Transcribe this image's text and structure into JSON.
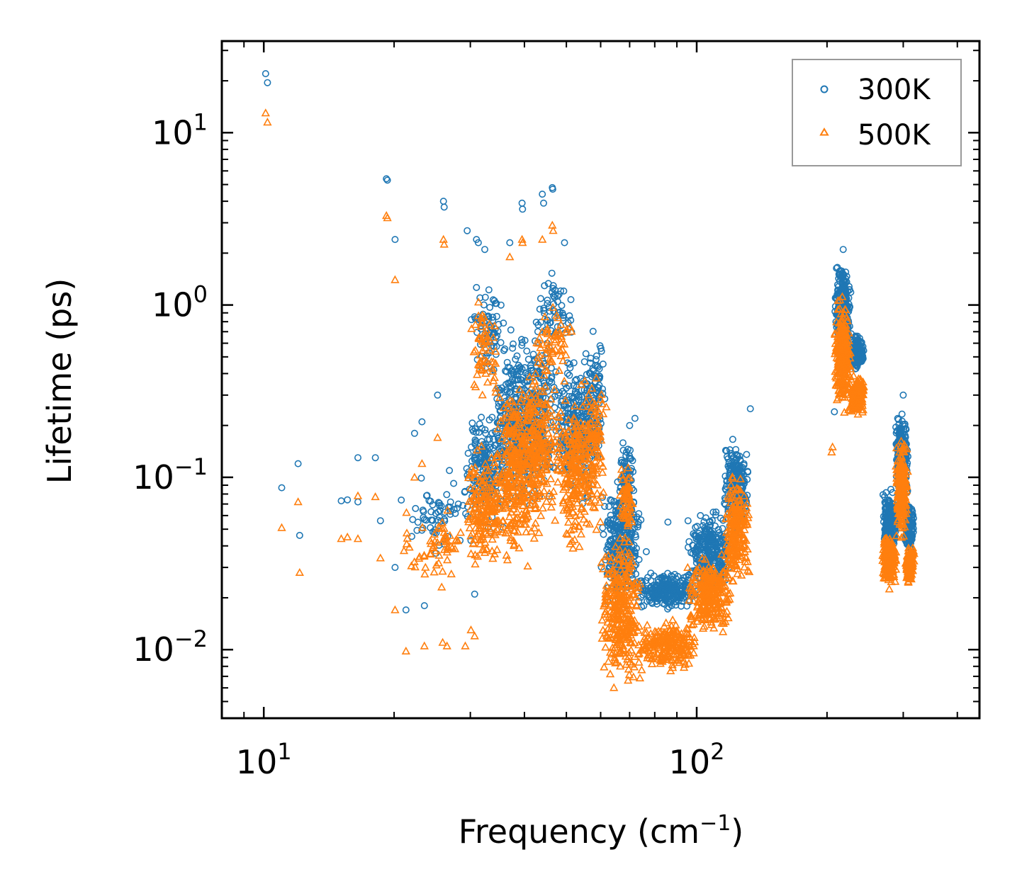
{
  "chart_data": {
    "type": "scatter",
    "x_scale": "log",
    "y_scale": "log",
    "xlim": [
      8,
      450
    ],
    "ylim": [
      0.004,
      34
    ],
    "xlabel": "Frequency (cm",
    "xlabel_sup": "−1",
    "xlabel_end": ")",
    "ylabel": "Lifetime (ps)",
    "x_major_ticks": [
      {
        "value": 10,
        "base": "10",
        "exp": "1"
      },
      {
        "value": 100,
        "base": "10",
        "exp": "2"
      }
    ],
    "y_major_ticks": [
      {
        "value": 10,
        "base": "10",
        "exp": "1"
      },
      {
        "value": 1,
        "base": "10",
        "exp": "0"
      },
      {
        "value": 0.1,
        "base": "10",
        "exp": "−1"
      },
      {
        "value": 0.01,
        "base": "10",
        "exp": "−2"
      }
    ],
    "legend": {
      "position": "top-right"
    },
    "series": [
      {
        "name": "300K",
        "marker": "circle",
        "color": "#1f77b4",
        "isolated_points": [
          [
            10.1,
            22
          ],
          [
            10.2,
            19.5
          ],
          [
            19.2,
            5.4
          ],
          [
            19.3,
            5.3
          ],
          [
            20.1,
            2.4
          ],
          [
            26.0,
            4.0
          ],
          [
            26.1,
            3.7
          ],
          [
            29.5,
            2.7
          ],
          [
            31,
            2.4
          ],
          [
            31.3,
            2.3
          ],
          [
            32.4,
            2.1
          ],
          [
            37,
            2.3
          ],
          [
            39.5,
            3.9
          ],
          [
            39.6,
            3.6
          ],
          [
            44.0,
            4.4
          ],
          [
            44.3,
            3.9
          ],
          [
            46.4,
            4.8
          ],
          [
            46.5,
            4.7
          ],
          [
            49.5,
            2.3
          ],
          [
            11.0,
            0.087
          ],
          [
            12.0,
            0.12
          ],
          [
            12.1,
            0.046
          ],
          [
            15.1,
            0.073
          ],
          [
            15.6,
            0.074
          ],
          [
            16.5,
            0.13
          ],
          [
            16.5,
            0.072
          ],
          [
            18.1,
            0.13
          ],
          [
            18.6,
            0.056
          ],
          [
            20.1,
            0.03
          ],
          [
            21.3,
            0.017
          ],
          [
            22.3,
            0.18
          ],
          [
            23.2,
            0.21
          ],
          [
            23.5,
            0.018
          ],
          [
            25.2,
            0.3
          ],
          [
            28.4,
            0.043
          ],
          [
            30.1,
            0.043
          ],
          [
            30.7,
            0.021
          ],
          [
            102,
            0.06
          ],
          [
            95.5,
            0.056
          ],
          [
            85.8,
            0.055
          ],
          [
            76.5,
            0.037
          ],
          [
            133,
            0.25
          ],
          [
            208,
            0.24
          ],
          [
            212,
            1.2
          ],
          [
            218,
            2.1
          ],
          [
            300,
            0.3
          ],
          [
            72,
            0.22
          ],
          [
            70,
            0.2
          ]
        ],
        "clusters": [
          {
            "x_range": [
              20.5,
              30
            ],
            "y_range": [
              0.03,
              0.13
            ],
            "count": 60
          },
          {
            "x_range": [
              29,
              36
            ],
            "y_range": [
              0.04,
              0.3
            ],
            "count": 180
          },
          {
            "x_range": [
              30,
              36
            ],
            "y_range": [
              0.3,
              1.8
            ],
            "count": 70
          },
          {
            "x_range": [
              34,
              42
            ],
            "y_range": [
              0.05,
              0.8
            ],
            "count": 260
          },
          {
            "x_range": [
              38,
              48
            ],
            "y_range": [
              0.05,
              1.0
            ],
            "count": 260
          },
          {
            "x_range": [
              42,
              52
            ],
            "y_range": [
              0.5,
              1.7
            ],
            "count": 60
          },
          {
            "x_range": [
              47,
              60
            ],
            "y_range": [
              0.06,
              0.6
            ],
            "count": 260
          },
          {
            "x_range": [
              55,
              62
            ],
            "y_range": [
              0.1,
              0.9
            ],
            "count": 80
          },
          {
            "x_range": [
              60,
              75
            ],
            "y_range": [
              0.015,
              0.12
            ],
            "count": 300
          },
          {
            "x_range": [
              66,
              72
            ],
            "y_range": [
              0.06,
              0.2
            ],
            "count": 60
          },
          {
            "x_range": [
              73,
              100
            ],
            "y_range": [
              0.016,
              0.03
            ],
            "count": 240
          },
          {
            "x_range": [
              95,
              120
            ],
            "y_range": [
              0.02,
              0.07
            ],
            "count": 260
          },
          {
            "x_range": [
              115,
              133
            ],
            "y_range": [
              0.04,
              0.19
            ],
            "count": 220
          },
          {
            "x_range": [
              208,
              228
            ],
            "y_range": [
              0.5,
              1.9
            ],
            "count": 260
          },
          {
            "x_range": [
              225,
              245
            ],
            "y_range": [
              0.4,
              0.7
            ],
            "count": 160
          },
          {
            "x_range": [
              268,
              290
            ],
            "y_range": [
              0.033,
              0.09
            ],
            "count": 220
          },
          {
            "x_range": [
              288,
              308
            ],
            "y_range": [
              0.06,
              0.28
            ],
            "count": 260
          },
          {
            "x_range": [
              302,
              318
            ],
            "y_range": [
              0.032,
              0.08
            ],
            "count": 140
          }
        ]
      },
      {
        "name": "500K",
        "marker": "triangle",
        "color": "#ff7f0e",
        "isolated_points": [
          [
            10.1,
            13
          ],
          [
            10.2,
            11.5
          ],
          [
            19.2,
            3.3
          ],
          [
            19.3,
            3.2
          ],
          [
            20.1,
            1.4
          ],
          [
            26.0,
            2.4
          ],
          [
            26.1,
            2.25
          ],
          [
            37,
            1.9
          ],
          [
            39.5,
            2.4
          ],
          [
            39.6,
            2.3
          ],
          [
            44.0,
            2.4
          ],
          [
            46.4,
            2.9
          ],
          [
            46.6,
            2.7
          ],
          [
            11.0,
            0.051
          ],
          [
            12.0,
            0.072
          ],
          [
            12.1,
            0.028
          ],
          [
            15.1,
            0.044
          ],
          [
            15.6,
            0.045
          ],
          [
            16.5,
            0.078
          ],
          [
            16.5,
            0.044
          ],
          [
            18.1,
            0.077
          ],
          [
            18.6,
            0.034
          ],
          [
            20.1,
            0.017
          ],
          [
            21.3,
            0.0098
          ],
          [
            22.3,
            0.1
          ],
          [
            23.2,
            0.12
          ],
          [
            23.5,
            0.0105
          ],
          [
            25.2,
            0.17
          ],
          [
            25.9,
            0.011
          ],
          [
            26.5,
            0.0105
          ],
          [
            30.7,
            0.012
          ],
          [
            29.2,
            0.0105
          ],
          [
            30.1,
            0.013
          ],
          [
            205,
            0.14
          ],
          [
            206,
            0.15
          ]
        ],
        "clusters": [
          {
            "x_range": [
              20.5,
              30
            ],
            "y_range": [
              0.02,
              0.09
            ],
            "count": 60
          },
          {
            "x_range": [
              29,
              36
            ],
            "y_range": [
              0.025,
              0.17
            ],
            "count": 180
          },
          {
            "x_range": [
              30,
              35
            ],
            "y_range": [
              0.2,
              1.5
            ],
            "count": 60
          },
          {
            "x_range": [
              34,
              42
            ],
            "y_range": [
              0.025,
              0.5
            ],
            "count": 260
          },
          {
            "x_range": [
              38,
              48
            ],
            "y_range": [
              0.03,
              0.6
            ],
            "count": 260
          },
          {
            "x_range": [
              42,
              52
            ],
            "y_range": [
              0.3,
              1.1
            ],
            "count": 60
          },
          {
            "x_range": [
              47,
              60
            ],
            "y_range": [
              0.03,
              0.4
            ],
            "count": 260
          },
          {
            "x_range": [
              55,
              62
            ],
            "y_range": [
              0.06,
              0.5
            ],
            "count": 80
          },
          {
            "x_range": [
              60,
              75
            ],
            "y_range": [
              0.005,
              0.06
            ],
            "count": 320
          },
          {
            "x_range": [
              66,
              72
            ],
            "y_range": [
              0.04,
              0.13
            ],
            "count": 60
          },
          {
            "x_range": [
              73,
              100
            ],
            "y_range": [
              0.007,
              0.016
            ],
            "count": 220
          },
          {
            "x_range": [
              95,
              120
            ],
            "y_range": [
              0.011,
              0.04
            ],
            "count": 260
          },
          {
            "x_range": [
              115,
              133
            ],
            "y_range": [
              0.02,
              0.12
            ],
            "count": 220
          },
          {
            "x_range": [
              208,
              228
            ],
            "y_range": [
              0.2,
              1.2
            ],
            "count": 260
          },
          {
            "x_range": [
              225,
              245
            ],
            "y_range": [
              0.22,
              0.4
            ],
            "count": 140
          },
          {
            "x_range": [
              268,
              290
            ],
            "y_range": [
              0.022,
              0.05
            ],
            "count": 200
          },
          {
            "x_range": [
              288,
              308
            ],
            "y_range": [
              0.04,
              0.18
            ],
            "count": 240
          },
          {
            "x_range": [
              302,
              318
            ],
            "y_range": [
              0.022,
              0.045
            ],
            "count": 120
          }
        ]
      }
    ]
  }
}
